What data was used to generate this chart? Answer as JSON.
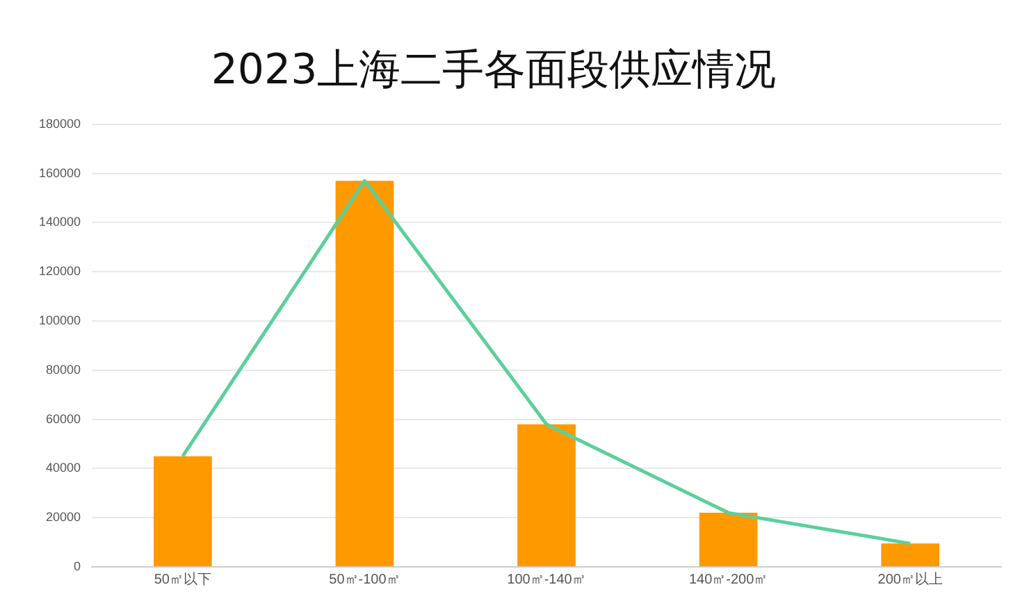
{
  "chart_data": {
    "type": "bar",
    "title": "2023上海二手各面段供应情况",
    "categories": [
      "50㎡以下",
      "50㎡-100㎡",
      "100㎡-140㎡",
      "140㎡-200㎡",
      "200㎡以上"
    ],
    "series": [
      {
        "color": "#ff9900",
        "values": [
          45000,
          157000,
          58000,
          22000,
          9500
        ]
      },
      {
        "type": "line",
        "color": "#5ccf9b",
        "values": [
          45000,
          157000,
          58000,
          22000,
          9500
        ]
      }
    ],
    "ylim": [
      0,
      180000
    ],
    "yticks": [
      0,
      20000,
      40000,
      60000,
      80000,
      100000,
      120000,
      140000,
      160000,
      180000
    ],
    "grid": "y",
    "marker": "none"
  }
}
